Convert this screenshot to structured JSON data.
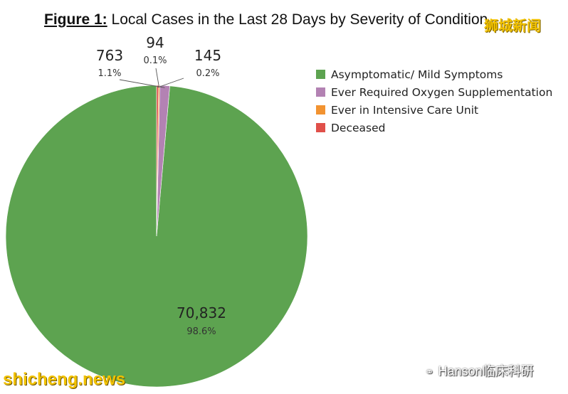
{
  "title": {
    "label": "Figure 1:",
    "text": " Local Cases in the Last 28 Days by Severity of Condition"
  },
  "watermarks": {
    "top": "狮城新闻",
    "bottom": "shicheng.news",
    "credit": "Hanson临床科研",
    "credit_icon": "wechat-icon"
  },
  "colors": {
    "asymptomatic": "#5da350",
    "oxygen": "#b382b3",
    "icu": "#f29331",
    "deceased": "#e0504a",
    "title": "#111111",
    "watermark": "#f2c200"
  },
  "legend": {
    "position": "right",
    "items": [
      {
        "label": "Asymptomatic/ Mild Symptoms",
        "color": "#5da350"
      },
      {
        "label": "Ever Required Oxygen Supplementation",
        "color": "#b382b3"
      },
      {
        "label": "Ever in Intensive Care Unit",
        "color": "#f29331"
      },
      {
        "label": "Deceased",
        "color": "#e0504a"
      }
    ]
  },
  "chart_data": {
    "type": "pie",
    "title": "Figure 1: Local Cases in the Last 28 Days by Severity of Condition",
    "start_angle": "12 o'clock",
    "direction": "counter-clockwise",
    "slices": [
      {
        "label": "Asymptomatic/ Mild Symptoms",
        "value": 70832,
        "value_label": "70,832",
        "percent_label": "98.6%",
        "color": "#5da350"
      },
      {
        "label": "Ever Required Oxygen Supplementation",
        "value": 763,
        "value_label": "763",
        "percent_label": "1.1%",
        "color": "#b382b3"
      },
      {
        "label": "Ever in Intensive Care Unit",
        "value": 94,
        "value_label": "94",
        "percent_label": "0.1%",
        "color": "#f29331"
      },
      {
        "label": "Deceased",
        "value": 145,
        "value_label": "145",
        "percent_label": "0.2%",
        "color": "#e0504a"
      }
    ]
  }
}
